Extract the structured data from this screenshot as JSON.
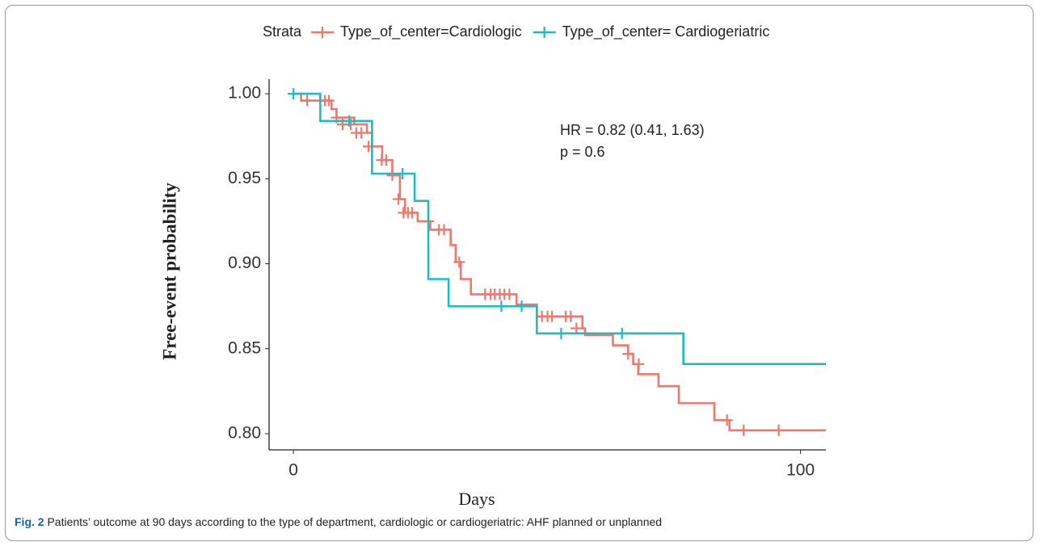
{
  "chart_data": {
    "type": "step",
    "x_label": "Days",
    "y_label": "Free-event probability",
    "legend_title": "Strata",
    "annotations": [
      "HR = 0.82 (0.41, 1.63)",
      "p = 0.6"
    ],
    "xlim": [
      -4.8,
      105
    ],
    "xticks": [
      0,
      100
    ],
    "ylim": [
      0.7905,
      1.0086
    ],
    "yticks": [
      {
        "value": 1,
        "label": "1.00"
      },
      0.95,
      {
        "value": 0.9,
        "label": "0.90"
      },
      0.85,
      {
        "value": 0.8,
        "label": "0.80"
      }
    ],
    "series": [
      {
        "name": "Type_of_center=Cardiologic",
        "color": "#ef776d",
        "x": [
          0,
          1.5,
          7.5,
          8.5,
          12,
          14.5,
          15.5,
          17.5,
          19.5,
          21,
          22,
          24.5,
          27,
          31,
          32,
          33,
          35,
          44,
          48,
          57,
          57.5,
          63,
          66,
          67,
          68,
          72,
          76,
          83,
          86
        ],
        "values": [
          1.0,
          0.996,
          0.991,
          0.986,
          0.982,
          0.977,
          0.969,
          0.961,
          0.952,
          0.938,
          0.93,
          0.925,
          0.92,
          0.911,
          0.901,
          0.891,
          0.882,
          0.876,
          0.869,
          0.862,
          0.858,
          0.852,
          0.847,
          0.841,
          0.835,
          0.828,
          0.818,
          0.808,
          0.802
        ],
        "censor_x": [
          2.7,
          5.3,
          6.2,
          7.0,
          8.5,
          9.7,
          11.3,
          12.4,
          13.4,
          14.8,
          17.4,
          18.3,
          19.5,
          20.7,
          21.7,
          22.6,
          23.4,
          26.6,
          28.7,
          29.7,
          32.7,
          37.8,
          38.9,
          39.7,
          40.7,
          41.6,
          42.6,
          49.0,
          50.1,
          51.0,
          53.7,
          54.7,
          55.8,
          66.0,
          68.1,
          85.5,
          88.8,
          95.7
        ],
        "censor_values": [
          0.996,
          0.996,
          0.996,
          0.996,
          0.986,
          0.982,
          0.982,
          0.977,
          0.977,
          0.969,
          0.961,
          0.961,
          0.952,
          0.938,
          0.93,
          0.93,
          0.93,
          0.925,
          0.92,
          0.92,
          0.901,
          0.882,
          0.882,
          0.882,
          0.882,
          0.882,
          0.882,
          0.869,
          0.869,
          0.869,
          0.869,
          0.869,
          0.862,
          0.847,
          0.841,
          0.808,
          0.802,
          0.802
        ]
      },
      {
        "name": "Type_of_center= Cardiogeriatric",
        "color": "#1fbcbf",
        "x": [
          0,
          5.3,
          15.5,
          23.9,
          26.6,
          30.6,
          48,
          76.9
        ],
        "values": [
          1.0,
          0.984,
          0.953,
          0.937,
          0.891,
          0.875,
          0.859,
          0.841
        ],
        "censor_x": [
          0,
          11.0,
          21.5,
          41.0,
          45.0,
          52.8,
          64.8
        ],
        "censor_values": [
          1.0,
          0.984,
          0.953,
          0.875,
          0.875,
          0.859,
          0.859
        ]
      }
    ]
  },
  "caption": {
    "label": "Fig. 2",
    "text": "Patients’ outcome at 90 days according to the type of department, cardiologic or cardiogeriatric: AHF planned or unplanned"
  }
}
